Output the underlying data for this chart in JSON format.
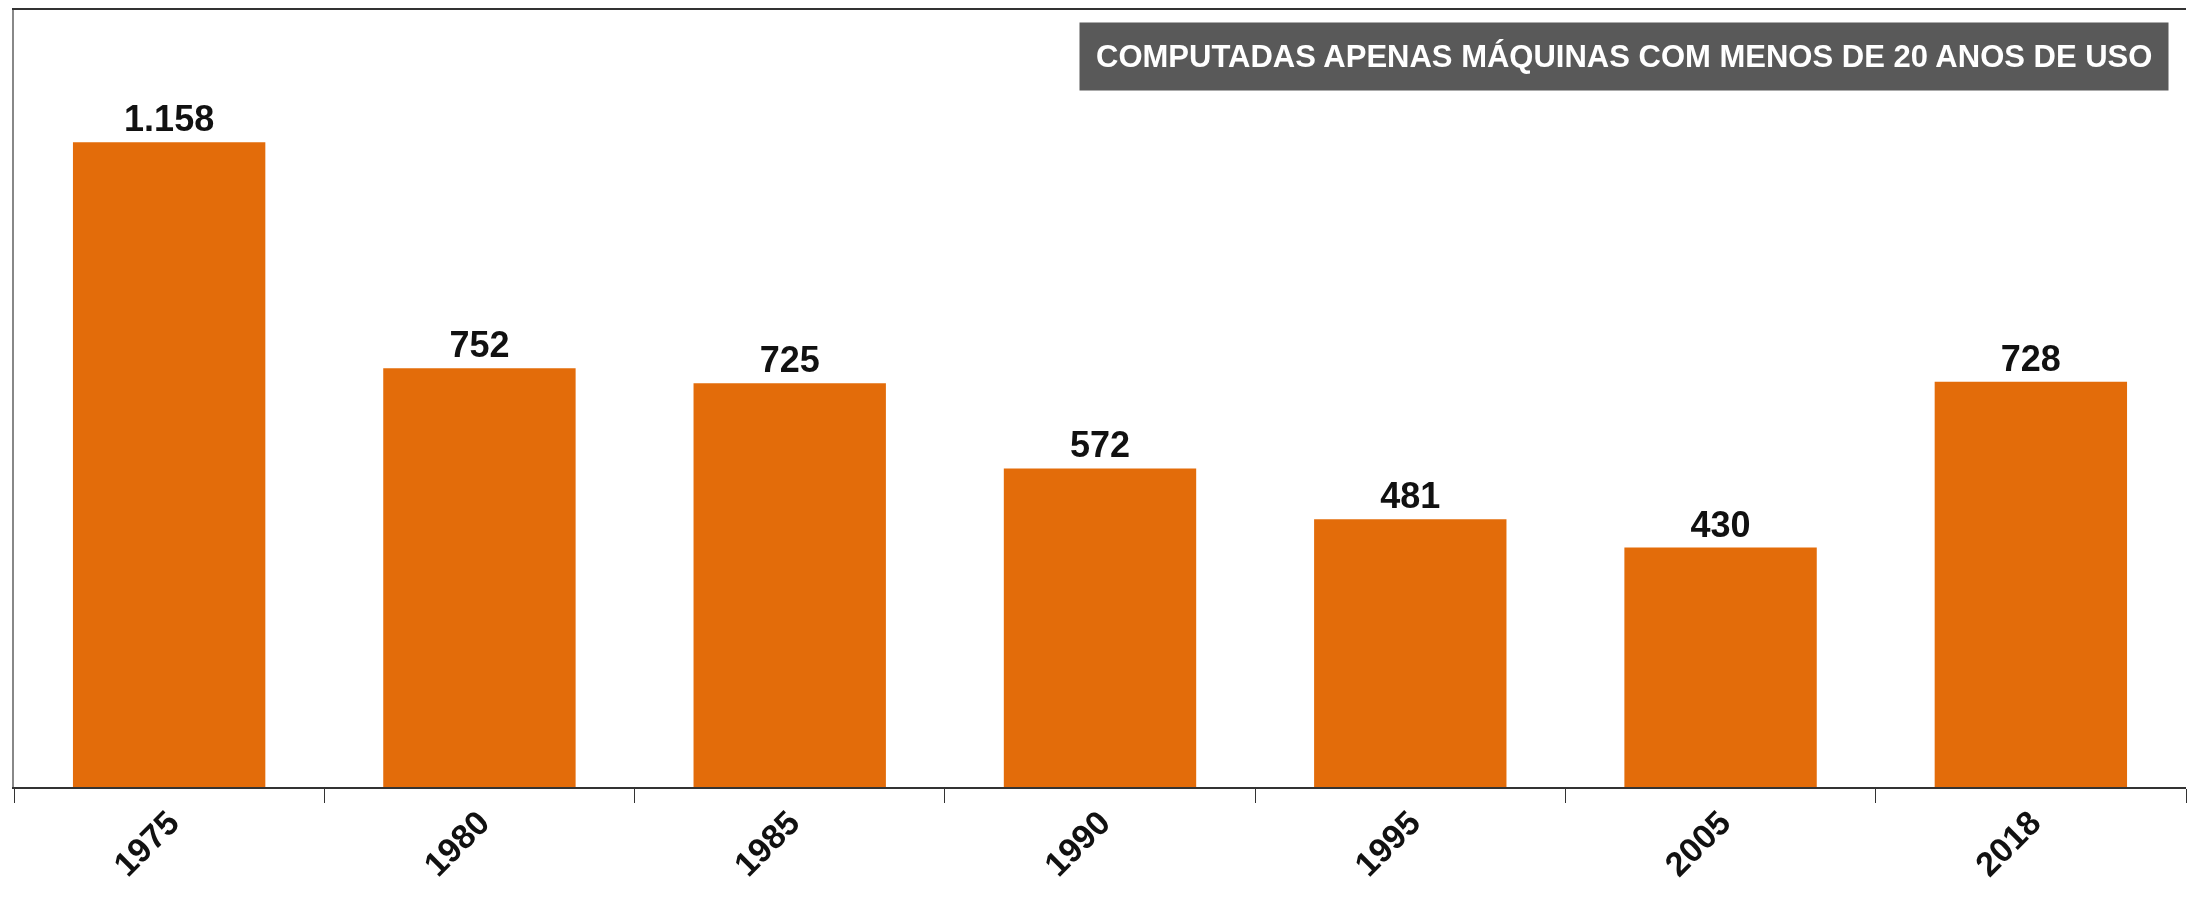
{
  "chart_data": {
    "type": "bar",
    "categories": [
      "1975",
      "1980",
      "1985",
      "1990",
      "1995",
      "2005",
      "2018"
    ],
    "values": [
      1158,
      752,
      725,
      572,
      481,
      430,
      728
    ],
    "value_labels": [
      "1.158",
      "752",
      "725",
      "572",
      "481",
      "430",
      "728"
    ],
    "color": "#e36c0a",
    "annotations": [
      "COMPUTADAS APENAS MÁQUINAS COM MENOS DE 20 ANOS DE USO"
    ]
  }
}
